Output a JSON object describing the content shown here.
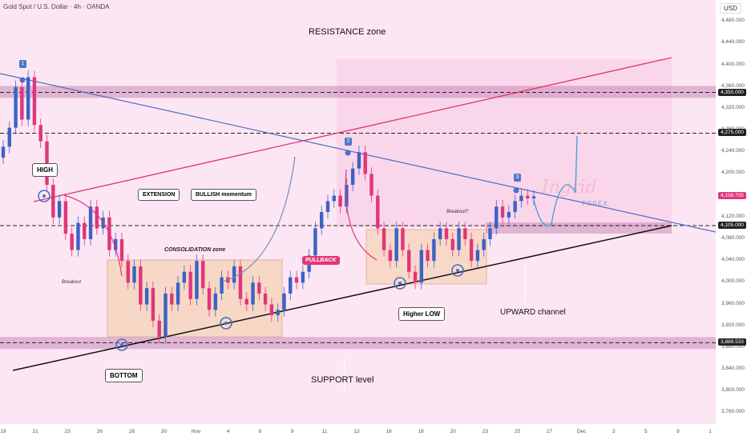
{
  "header": {
    "title": "Gold Spot / U.S. Dollar · 4h · OANDA",
    "currency": "USD"
  },
  "labels": {
    "resistance_zone": "RESISTANCE zone",
    "support_level": "SUPPORT level",
    "upward_channel": "UPWARD channel",
    "high": "HIGH",
    "bottom": "BOTTOM",
    "extension": "EXTENSION",
    "bullish_momentum": "BULLISH momentum",
    "consolidation_zone": "CONSOLIDATION zone",
    "pullback": "PULLBACK",
    "higher_low": "Higher LOW",
    "breakout": "Breakout",
    "breakout_q": "Breakout?",
    "badge1": "1",
    "badge2": "2",
    "badge3": "3",
    "watermark": "Ingrid",
    "watermark_sub": "FOREX"
  },
  "price_tags": [
    {
      "value": "4,350.000",
      "bg": "#222222",
      "fg": "#ffffff"
    },
    {
      "value": "4,275.000",
      "bg": "#222222",
      "fg": "#ffffff"
    },
    {
      "value": "4,158.705",
      "bg": "#e0367a",
      "fg": "#ffffff"
    },
    {
      "value": "4,105.000",
      "bg": "#222222",
      "fg": "#ffffff"
    },
    {
      "value": "3,889.533",
      "bg": "#222222",
      "fg": "#ffffff"
    }
  ],
  "y_ticks": [
    "4,480.000",
    "4,440.000",
    "4,400.000",
    "4,360.000",
    "4,320.000",
    "4,280.000",
    "4,240.000",
    "4,200.000",
    "4,160.000",
    "4,120.000",
    "4,080.000",
    "4,040.000",
    "4,000.000",
    "3,960.000",
    "3,920.000",
    "3,880.000",
    "3,840.000",
    "3,800.000",
    "3,760.000"
  ],
  "x_ticks": [
    "19",
    "21",
    "23",
    "26",
    "28",
    "30",
    "Nov",
    "4",
    "6",
    "9",
    "11",
    "13",
    "16",
    "18",
    "20",
    "23",
    "25",
    "27",
    "Dec",
    "3",
    "5",
    "9",
    "1"
  ],
  "colors": {
    "bull": "#3a63c4",
    "bear": "#e0367a",
    "resistance_line": "#e0366a",
    "trend_blue": "#4a6fc8",
    "support_line": "#111111",
    "zone": "#c98bb8",
    "consolidation": "#f6d3b8"
  },
  "chart_data": {
    "type": "candlestick",
    "title": "Gold Spot / U.S. Dollar · 4h · OANDA",
    "ylim": [
      3740,
      4520
    ],
    "levels": [
      4350,
      4275,
      4105,
      3889.533
    ],
    "current_price": 4158.705,
    "support_zone": [
      3880,
      3900
    ],
    "resistance_zone": [
      4340,
      4362
    ],
    "closes": [
      4250,
      4285,
      4360,
      4300,
      4378,
      4290,
      4260,
      4180,
      4120,
      4150,
      4090,
      4060,
      4110,
      4080,
      4140,
      4100,
      4120,
      4060,
      4080,
      4040,
      4000,
      4030,
      3960,
      3990,
      3930,
      3900,
      3980,
      3960,
      4000,
      4020,
      3970,
      4040,
      3990,
      3950,
      3980,
      4010,
      4000,
      4030,
      3970,
      3960,
      4000,
      3980,
      3960,
      3940,
      3950,
      3980,
      4010,
      4000,
      4020,
      4050,
      4100,
      4130,
      4150,
      4160,
      4140,
      4180,
      4210,
      4240,
      4200,
      4160,
      4100,
      4060,
      4040,
      4100,
      4060,
      4020,
      4000,
      4060,
      4040,
      4080,
      4100,
      4080,
      4060,
      4100,
      4080,
      4040,
      4060,
      4080,
      4100,
      4140,
      4120,
      4130,
      4150,
      4160,
      4155,
      4158.705
    ]
  }
}
